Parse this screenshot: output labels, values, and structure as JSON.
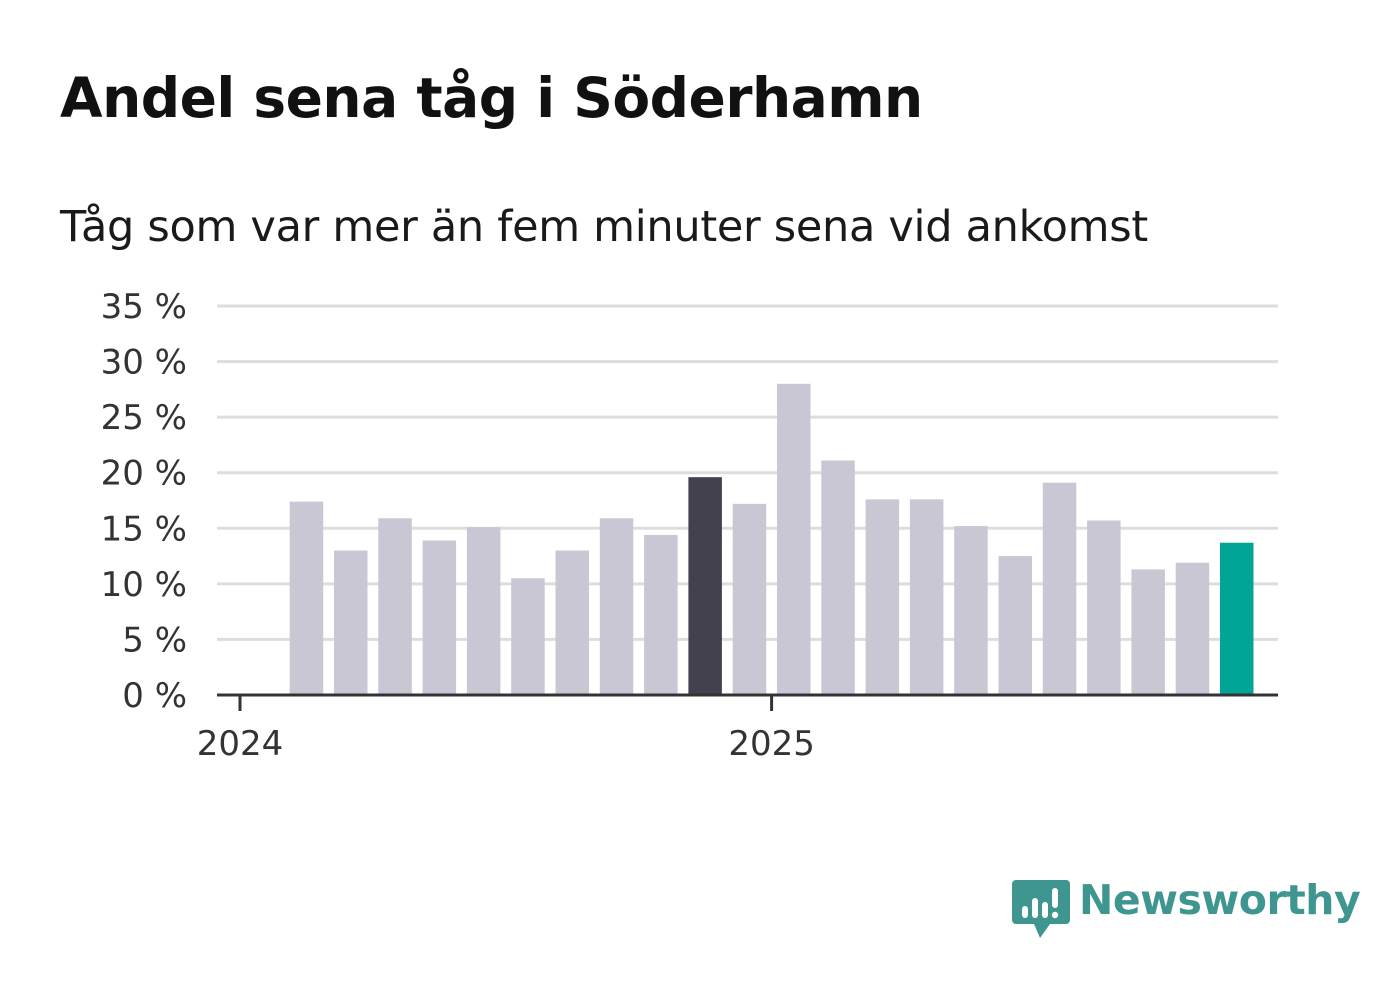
{
  "title": "Andel sena tåg i Söderhamn",
  "subtitle": "Tåg som var mer än fem minuter sena vid ankomst",
  "brand": {
    "name": "Newsworthy",
    "color": "#3f9690"
  },
  "colors": {
    "bar_default": "#c8c7d3",
    "bar_highlight_dark": "#43414e",
    "bar_highlight_current": "#00a596",
    "grid": "#dddddd",
    "axis": "#333333"
  },
  "chart_data": {
    "type": "bar",
    "title": "Andel sena tåg i Söderhamn",
    "subtitle": "Tåg som var mer än fem minuter sena vid ankomst",
    "xlabel": "",
    "ylabel": "",
    "unit": "%",
    "ylim": [
      0,
      35
    ],
    "yticks": [
      0,
      5,
      10,
      15,
      20,
      25,
      30,
      35
    ],
    "ytick_labels": [
      "0 %",
      "5 %",
      "10 %",
      "15 %",
      "20 %",
      "25 %",
      "30 %",
      "35 %"
    ],
    "x_tick_labels": [
      {
        "label": "2024",
        "at_index": 0
      },
      {
        "label": "2025",
        "at_index": 12
      }
    ],
    "categories": [
      "2024-01",
      "2024-02",
      "2024-03",
      "2024-04",
      "2024-05",
      "2024-06",
      "2024-07",
      "2024-08",
      "2024-09",
      "2024-10",
      "2024-11",
      "2024-12",
      "2025-01",
      "2025-02",
      "2025-03",
      "2025-04",
      "2025-05",
      "2025-06",
      "2025-07",
      "2025-08",
      "2025-09",
      "2025-10",
      "2025-11",
      "2025-12"
    ],
    "values": [
      null,
      17.4,
      13.0,
      15.9,
      13.9,
      15.1,
      10.5,
      13.0,
      15.9,
      14.4,
      19.6,
      17.2,
      28.0,
      21.1,
      17.6,
      17.6,
      15.2,
      12.5,
      19.1,
      15.7,
      11.3,
      11.9,
      13.7,
      null
    ],
    "highlight": [
      {
        "index": 10,
        "color": "#43414e"
      },
      {
        "index": 22,
        "color": "#00a596"
      }
    ],
    "grid": true
  }
}
